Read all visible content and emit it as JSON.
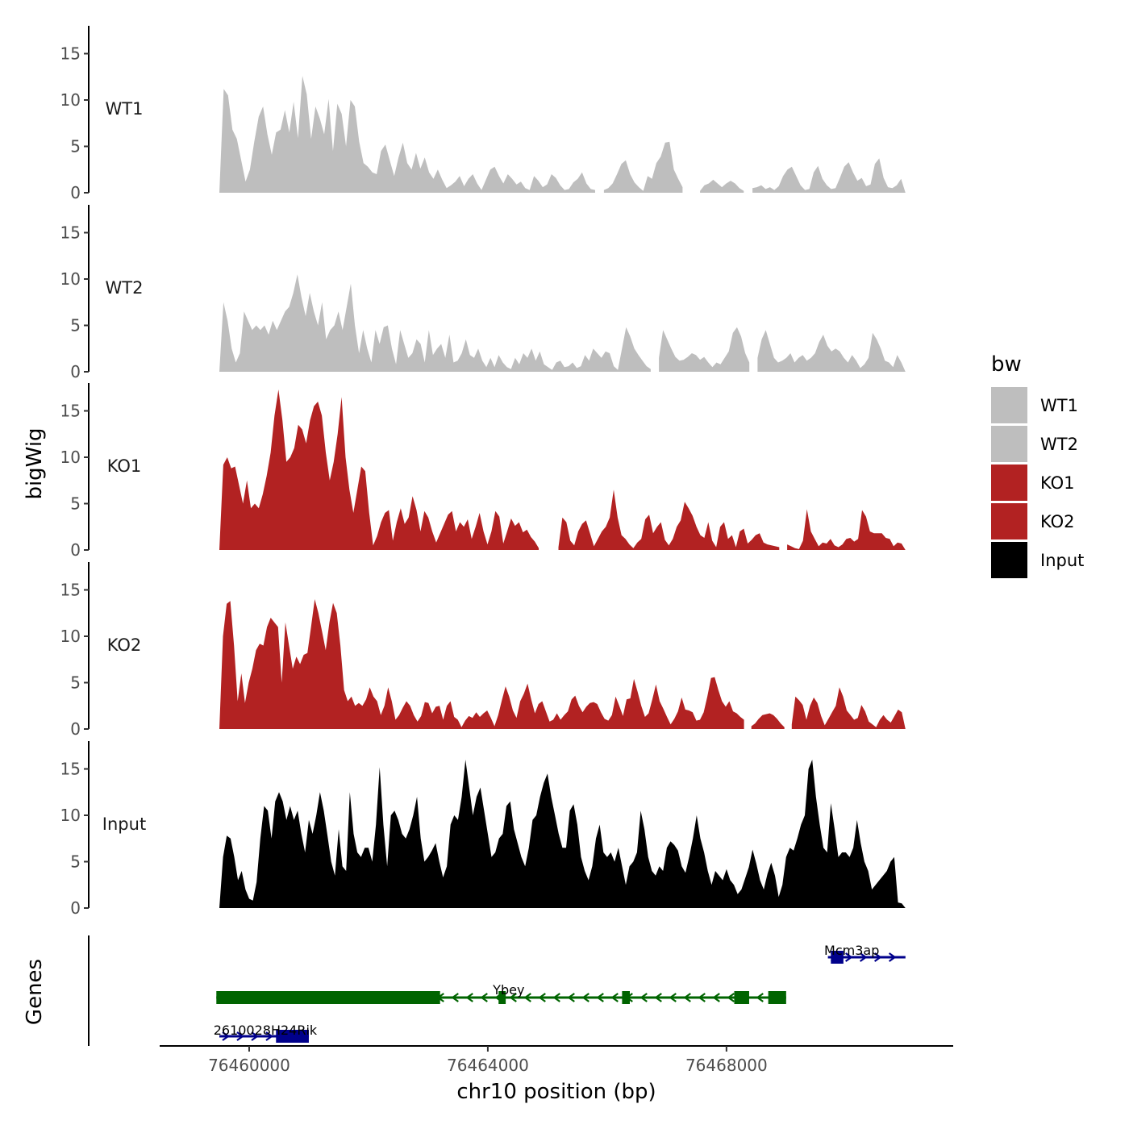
{
  "chart_data": {
    "type": "area",
    "title": "",
    "xlabel": "chr10 position (bp)",
    "ylabel": "bigWig",
    "genes_axis_label": "Genes",
    "xlim": [
      76458500,
      76471800
    ],
    "data_range": [
      76459500,
      76471000
    ],
    "ylim": [
      0,
      18
    ],
    "y_ticks": [
      0,
      5,
      10,
      15
    ],
    "x_ticks": [
      {
        "value": 76460000,
        "label": "76460000"
      },
      {
        "value": 76464000,
        "label": "76464000"
      },
      {
        "value": 76468000,
        "label": "76468000"
      }
    ],
    "legend": {
      "title": "bw",
      "position": "right",
      "entries": [
        {
          "name": "WT1",
          "color": "#bebebe"
        },
        {
          "name": "WT2",
          "color": "#bebebe"
        },
        {
          "name": "KO1",
          "color": "#b22222"
        },
        {
          "name": "KO2",
          "color": "#b22222"
        },
        {
          "name": "Input",
          "color": "#000000"
        }
      ]
    },
    "series": [
      {
        "name": "WT1",
        "color": "#bebebe",
        "values": [
          0,
          11.2,
          10.5,
          6.8,
          5.8,
          3.5,
          1.2,
          2.5,
          5.5,
          8.2,
          9.3,
          6.3,
          4.1,
          6.5,
          6.8,
          8.9,
          6.5,
          9.8,
          5.9,
          12.6,
          10.6,
          5.8,
          9.3,
          8.0,
          6.3,
          10.1,
          4.5,
          9.6,
          8.5,
          5.0,
          10.0,
          9.3,
          5.5,
          3.2,
          2.8,
          2.2,
          2.0,
          4.5,
          5.2,
          3.5,
          1.8,
          3.8,
          5.4,
          3.2,
          2.5,
          4.3,
          2.6,
          3.8,
          2.2,
          1.5,
          2.5,
          1.4,
          0.5,
          0.8,
          1.2,
          1.8,
          0.7,
          1.5,
          2.0,
          1.0,
          0.3,
          1.4,
          2.5,
          2.8,
          1.8,
          1.0,
          2.0,
          1.5,
          0.9,
          1.2,
          0.5,
          0.3,
          1.8,
          1.3,
          0.6,
          0.9,
          2.0,
          1.6,
          0.8,
          0.3,
          0.4,
          1.1,
          1.5,
          2.2,
          1.0,
          0.4,
          0.3,
          null,
          0.3,
          0.5,
          1.0,
          2.0,
          3.1,
          3.5,
          2.0,
          1.1,
          0.6,
          0.2,
          1.8,
          1.5,
          3.2,
          3.9,
          5.4,
          5.5,
          2.5,
          1.5,
          0.6,
          null,
          null,
          null,
          0.2,
          0.8,
          1.0,
          1.4,
          1.0,
          0.6,
          1.0,
          1.3,
          1.0,
          0.5,
          0.2,
          null,
          0.5,
          0.6,
          0.8,
          0.4,
          0.6,
          0.3,
          0.7,
          1.8,
          2.5,
          2.8,
          1.8,
          0.8,
          0.3,
          0.4,
          2.2,
          2.9,
          1.5,
          0.8,
          0.4,
          0.5,
          1.6,
          2.8,
          3.3,
          2.2,
          1.3,
          1.6,
          0.7,
          0.9,
          3.1,
          3.7,
          1.6,
          0.6,
          0.5,
          0.8,
          1.5,
          0
        ]
      },
      {
        "name": "WT2",
        "color": "#bebebe",
        "values": [
          0,
          7.5,
          5.5,
          2.5,
          1.0,
          2.0,
          6.5,
          5.5,
          4.5,
          5.0,
          4.5,
          5.0,
          4.0,
          5.5,
          4.5,
          5.5,
          6.5,
          7.0,
          8.5,
          10.5,
          8.0,
          6.0,
          8.5,
          6.5,
          5.0,
          7.5,
          3.5,
          4.5,
          5.0,
          6.5,
          4.5,
          7.0,
          9.5,
          5.0,
          2.0,
          4.5,
          2.5,
          1.0,
          4.5,
          3.0,
          4.8,
          5.0,
          2.5,
          0.8,
          4.5,
          3.0,
          1.5,
          2.0,
          3.5,
          3.0,
          1.0,
          4.5,
          1.8,
          2.5,
          3.0,
          1.5,
          4.0,
          1.0,
          1.2,
          2.0,
          3.5,
          1.8,
          1.5,
          2.5,
          1.2,
          0.5,
          1.5,
          0.5,
          1.8,
          1.0,
          0.5,
          0.3,
          1.5,
          0.8,
          2.0,
          1.5,
          2.5,
          1.2,
          2.2,
          0.8,
          0.5,
          0.2,
          1.0,
          1.2,
          0.5,
          0.6,
          1.0,
          0.4,
          0.6,
          1.8,
          1.2,
          2.5,
          2.0,
          1.5,
          2.2,
          2.0,
          0.6,
          0.2,
          2.5,
          4.8,
          3.8,
          2.5,
          1.8,
          1.2,
          0.6,
          0.3,
          null,
          1.5,
          4.5,
          3.5,
          2.5,
          1.6,
          1.2,
          1.3,
          1.6,
          2.0,
          1.8,
          1.3,
          1.6,
          1.0,
          0.5,
          1.0,
          0.8,
          1.5,
          2.2,
          4.2,
          4.8,
          3.8,
          2.0,
          1.0,
          null,
          1.5,
          3.5,
          4.5,
          3.0,
          1.5,
          1.0,
          1.2,
          1.5,
          2.0,
          1.0,
          1.5,
          1.8,
          1.2,
          1.5,
          2.0,
          3.2,
          4.0,
          2.8,
          2.2,
          2.5,
          2.2,
          1.5,
          1.0,
          1.8,
          1.2,
          0.4,
          0.8,
          1.5,
          4.2,
          3.5,
          2.5,
          1.2,
          1.0,
          0.5,
          1.8,
          1.0,
          0
        ]
      },
      {
        "name": "KO1",
        "color": "#b22222",
        "values": [
          0,
          9.2,
          10.0,
          8.8,
          9.0,
          7.0,
          5.0,
          7.5,
          4.5,
          5.0,
          4.5,
          6.0,
          8.0,
          10.5,
          14.5,
          17.3,
          14.0,
          9.5,
          10.0,
          11.0,
          13.5,
          13.0,
          11.5,
          14.0,
          15.5,
          16.0,
          14.5,
          10.5,
          7.5,
          9.5,
          12.5,
          16.5,
          10.0,
          6.5,
          4.0,
          6.5,
          9.0,
          8.5,
          4.0,
          0.5,
          1.5,
          3.0,
          4.0,
          4.3,
          1.0,
          3.0,
          4.5,
          2.8,
          3.5,
          5.8,
          4.3,
          2.0,
          4.2,
          3.5,
          2.0,
          0.8,
          1.8,
          2.8,
          3.8,
          4.2,
          2.0,
          3.0,
          2.5,
          3.3,
          1.2,
          2.5,
          4.0,
          2.0,
          0.6,
          2.0,
          4.2,
          3.6,
          0.7,
          2.0,
          3.4,
          2.6,
          3.0,
          1.9,
          2.2,
          1.4,
          0.9,
          0.2,
          null,
          null,
          null,
          null,
          0.3,
          3.5,
          3.0,
          1.0,
          0.5,
          2.0,
          2.8,
          3.2,
          1.8,
          0.4,
          1.2,
          2.0,
          2.5,
          3.5,
          6.5,
          3.5,
          1.6,
          1.2,
          0.6,
          0.2,
          0.8,
          1.2,
          3.3,
          3.8,
          1.8,
          2.5,
          3.0,
          1.1,
          0.5,
          1.2,
          2.5,
          3.2,
          5.2,
          4.5,
          3.7,
          2.5,
          1.6,
          1.3,
          3.0,
          1.0,
          0.3,
          2.5,
          3.0,
          1.2,
          1.6,
          0.3,
          2.0,
          2.3,
          0.7,
          1.1,
          1.6,
          1.8,
          0.8,
          0.6,
          0.5,
          0.4,
          0.3,
          null,
          0.6,
          0.4,
          0.2,
          0.1,
          1.0,
          4.4,
          2.0,
          1.2,
          0.4,
          0.8,
          0.7,
          1.2,
          0.5,
          0.3,
          0.6,
          1.2,
          1.3,
          0.9,
          1.2,
          4.3,
          3.6,
          2.0,
          1.8,
          1.8,
          1.8,
          1.3,
          1.2,
          0.4,
          0.8,
          0.7,
          0
        ]
      },
      {
        "name": "KO2",
        "color": "#b22222",
        "values": [
          0,
          10.0,
          13.5,
          13.8,
          9.0,
          3.0,
          6.0,
          2.8,
          5.0,
          6.5,
          8.5,
          9.2,
          9.0,
          11.0,
          12.0,
          11.5,
          11.0,
          5.0,
          11.5,
          9.0,
          6.5,
          7.8,
          7.0,
          8.0,
          8.2,
          11.0,
          14.0,
          12.5,
          10.5,
          8.5,
          11.5,
          13.6,
          12.5,
          9.0,
          4.2,
          3.0,
          3.5,
          2.5,
          2.8,
          2.5,
          3.2,
          4.5,
          3.5,
          3.0,
          1.5,
          2.5,
          4.5,
          3.0,
          1.0,
          1.5,
          2.3,
          3.0,
          2.5,
          1.5,
          0.8,
          1.4,
          2.9,
          2.8,
          1.7,
          2.4,
          2.5,
          1.0,
          2.5,
          3.0,
          1.3,
          1.0,
          0.2,
          0.9,
          1.4,
          1.2,
          1.8,
          1.3,
          1.7,
          2.0,
          1.2,
          0.3,
          1.5,
          3.1,
          4.6,
          3.5,
          2.0,
          1.2,
          3.0,
          3.8,
          4.9,
          3.2,
          1.7,
          2.7,
          3.0,
          1.9,
          0.8,
          1.0,
          1.7,
          1.0,
          1.5,
          1.9,
          3.2,
          3.6,
          2.5,
          1.8,
          2.4,
          2.8,
          2.9,
          2.7,
          1.8,
          1.1,
          0.9,
          1.5,
          3.5,
          2.5,
          1.4,
          3.2,
          3.3,
          5.4,
          4.0,
          2.5,
          1.3,
          1.7,
          3.2,
          4.8,
          3.0,
          2.2,
          1.3,
          0.5,
          1.1,
          1.9,
          3.4,
          2.1,
          2.0,
          1.8,
          0.9,
          1.0,
          1.8,
          3.5,
          5.5,
          5.6,
          4.2,
          3.0,
          2.4,
          3.0,
          1.9,
          1.7,
          1.3,
          1.0,
          null,
          0.3,
          0.6,
          1.1,
          1.5,
          1.6,
          1.7,
          1.5,
          1.1,
          0.6,
          0.2,
          null,
          0.5,
          3.5,
          3.1,
          2.6,
          1.0,
          2.5,
          3.4,
          2.8,
          1.4,
          0.4,
          1.1,
          1.8,
          2.5,
          4.5,
          3.5,
          2.0,
          1.5,
          1.0,
          1.2,
          2.6,
          1.9,
          0.8,
          0.5,
          0.2,
          1.0,
          1.5,
          1.0,
          0.7,
          1.4,
          2.1,
          1.8,
          0
        ]
      },
      {
        "name": "Input",
        "color": "#000000",
        "values": [
          0,
          5.5,
          7.8,
          7.5,
          5.5,
          3.0,
          4.0,
          2.0,
          1.0,
          0.8,
          2.8,
          7.5,
          11.0,
          10.5,
          7.5,
          11.5,
          12.5,
          11.5,
          9.5,
          11.0,
          9.5,
          10.5,
          8.0,
          6.0,
          9.5,
          8.0,
          10.0,
          12.5,
          10.5,
          7.8,
          5.0,
          3.5,
          8.5,
          4.5,
          4.0,
          12.5,
          8.0,
          6.0,
          5.5,
          6.5,
          6.5,
          5.0,
          9.0,
          15.2,
          9.0,
          4.5,
          10.0,
          10.5,
          9.5,
          8.0,
          7.5,
          8.5,
          10.0,
          12.0,
          7.5,
          5.0,
          5.5,
          6.2,
          7.0,
          5.0,
          3.3,
          4.5,
          9.0,
          10.0,
          9.5,
          12.0,
          16.0,
          13.0,
          10.0,
          12.0,
          13.0,
          10.5,
          8.0,
          5.5,
          6.0,
          7.5,
          8.0,
          11.0,
          11.5,
          8.5,
          7.0,
          5.5,
          4.5,
          6.5,
          9.5,
          10.0,
          12.0,
          13.5,
          14.5,
          12.0,
          10.0,
          8.0,
          6.5,
          6.5,
          10.5,
          11.2,
          9.0,
          5.5,
          4.0,
          3.0,
          4.5,
          7.5,
          9.0,
          6.0,
          5.5,
          6.0,
          5.0,
          6.5,
          4.5,
          2.5,
          4.5,
          5.0,
          6.0,
          10.5,
          8.5,
          5.5,
          4.0,
          3.5,
          4.5,
          4.0,
          6.5,
          7.2,
          6.8,
          6.2,
          4.5,
          3.8,
          5.5,
          7.5,
          10.0,
          7.5,
          6.0,
          4.0,
          2.5,
          4.0,
          3.5,
          3.0,
          4.2,
          3.0,
          2.5,
          1.5,
          2.0,
          3.2,
          4.4,
          6.3,
          4.8,
          3.0,
          2.0,
          3.7,
          4.9,
          3.5,
          1.2,
          2.5,
          5.5,
          6.5,
          6.2,
          7.5,
          9.0,
          10.0,
          15.0,
          16.0,
          12.0,
          9.0,
          6.5,
          6.0,
          11.3,
          8.5,
          5.5,
          6.0,
          6.0,
          5.5,
          6.5,
          9.5,
          7.0,
          5.0,
          4.0,
          2.0,
          2.5,
          3.0,
          3.5,
          4.0,
          5.0,
          5.5,
          0.6,
          0.5,
          0
        ]
      }
    ],
    "genes": [
      {
        "name": "Mcm3ap",
        "color": "#00008b",
        "strand": "+",
        "row": 1,
        "start": 76469700,
        "end": 76471000,
        "exons": [
          [
            76469750,
            76469960
          ]
        ]
      },
      {
        "name": "Ybey",
        "color": "#006400",
        "strand": "-",
        "row": 2,
        "start": 76459450,
        "end": 76469000,
        "exons": [
          [
            76459450,
            76463200
          ],
          [
            76464180,
            76464300
          ],
          [
            76466250,
            76466380
          ],
          [
            76468130,
            76468380
          ],
          [
            76468700,
            76469000
          ]
        ]
      },
      {
        "name": "2610028H24Rik",
        "color": "#00008b",
        "strand": "+",
        "row": 3,
        "start": 76459500,
        "end": 76461000,
        "exons": [
          [
            76460450,
            76461000
          ]
        ]
      }
    ]
  }
}
